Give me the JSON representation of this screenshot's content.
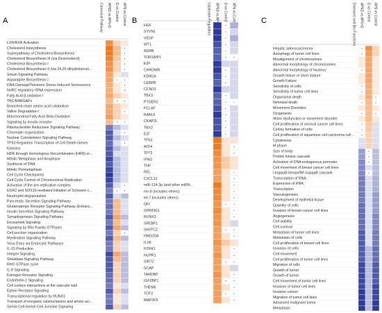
{
  "chart_data": [
    {
      "type": "heatmap",
      "panel": "A",
      "row_title": "Canonical Pathway",
      "columns": [
        "AP6D vs AP6+D",
        "D vs Control",
        "AP6 vs Control"
      ],
      "colors": {
        "positive": "#f07a1c",
        "negative": "#2d3c9c"
      },
      "rows": [
        "LXR/RXR Activation",
        "Cholesterol biosynthesis",
        "Superpathway of Cholesterol Biosynthesis",
        "Cholesterol Biosynthesis III (via Desmosterol)",
        "Cholesterol Biosynthesis I",
        "Cholesterol Biosynthesis II (via 24,25-dihydrolanost...",
        "Sirtuin Signaling Pathway",
        "Asparagine Biosynthesis I",
        "DNA Damage/Telomere Stress Induced Senescence",
        "NoRC regulatory rRNA expression",
        "Fatty Acid β-oxidation I",
        "TBC/RABGAPs",
        "Branched-chain amino acid catabolism",
        "Valine Degradation I",
        "Mitochondrial Fatty Acid Beta-Oxidation",
        "Signaling by Insulin receptor",
        "Ribonucleotide Reductase Signaling Pathway",
        "Chromatin organization",
        "Nuclear Cytoskeleton Signaling Pathway",
        "TP53 Regulates Transcription of Cell Death Genes",
        "Kinesins",
        "HDR through Homologous Recombination (HRR) or...",
        "Mitotic Metaphase and Anaphase",
        "Synthesis of DNA",
        "Mitotic Prometaphase",
        "Cell Cycle Checkpoints",
        "Cell Cycle Control of Chromosomal Replication",
        "Activation of the pre-replicative complex",
        "EGR2 and SOX10-mediated initiation of Schwann c...",
        "Neutrophil degranulation",
        "Pancreatic Secretion Signaling Pathway",
        "Glutamatergic Receptor Signaling Pathway (Enhanc...",
        "Insulin Secretion Signaling Pathway",
        "Synaptogenesis Signaling Pathway",
        "Eicosanoid Signaling",
        "Signaling by Rho Family GTPases",
        "Cell junction organization",
        "Myelination Signaling Pathway",
        "Virus Entry via Endocytic Pathways",
        "IL-15 Production",
        "Integrin Signaling",
        "Sheddase Signaling Pathway",
        "RHO GTPase cycle",
        "IL-8 Signaling",
        "Estrogen Receptor Signaling",
        "Endothelin-1 Signaling",
        "Cell surface interactions at the vascular wall",
        "Ephrin Receptor Signaling",
        "Transcriptional regulation by RUNX1",
        "Transport of inorganic cations/anions and amino aci...",
        "Sertoli Cell-Sertoli Cell Junction Signaling"
      ],
      "values": [
        [
          2.5,
          1,
          0.5
        ],
        [
          3,
          1.5,
          null
        ],
        [
          3,
          1.5,
          null
        ],
        [
          2.8,
          1.2,
          null
        ],
        [
          2.5,
          1,
          null
        ],
        [
          2.5,
          1,
          null
        ],
        [
          2,
          0.5,
          -0.5
        ],
        [
          2,
          null,
          null
        ],
        [
          1.8,
          0.5,
          null
        ],
        [
          1.8,
          0.5,
          null
        ],
        [
          2,
          1,
          0.5
        ],
        [
          1.5,
          null,
          null
        ],
        [
          2,
          1,
          0.5
        ],
        [
          2,
          1,
          null
        ],
        [
          2.2,
          1,
          0.5
        ],
        [
          1.5,
          null,
          null
        ],
        [
          -2,
          -1,
          -0.5
        ],
        [
          -2.5,
          -0.5,
          null
        ],
        [
          -2.5,
          -1,
          -0.5
        ],
        [
          -2.2,
          -0.5,
          null
        ],
        [
          -2.5,
          -1,
          -0.5
        ],
        [
          -2.5,
          -0.5,
          -0.5
        ],
        [
          -2.8,
          -1,
          -0.5
        ],
        [
          -2.5,
          -1,
          -0.5
        ],
        [
          -2.8,
          -1,
          -0.5
        ],
        [
          -3,
          -1,
          -0.5
        ],
        [
          -2.8,
          -1,
          -0.5
        ],
        [
          -2.5,
          -0.5,
          null
        ],
        [
          -2,
          null,
          null
        ],
        [
          -2.5,
          -0.5,
          -1
        ],
        [
          -2,
          1.5,
          -0.5
        ],
        [
          -2.2,
          1.5,
          -0.5
        ],
        [
          -2,
          1.5,
          -0.5
        ],
        [
          -2.5,
          2,
          -1
        ],
        [
          -2,
          1.5,
          -0.5
        ],
        [
          -2.5,
          2,
          -1
        ],
        [
          -2,
          1,
          null
        ],
        [
          -2.5,
          1.5,
          -1
        ],
        [
          -2,
          1,
          -0.5
        ],
        [
          -2,
          1,
          -0.5
        ],
        [
          -2.8,
          2,
          -1
        ],
        [
          -2.5,
          1.5,
          -1
        ],
        [
          -2.5,
          1,
          -1
        ],
        [
          -2.5,
          1,
          -1
        ],
        [
          -2.2,
          1,
          -1
        ],
        [
          -2.2,
          1,
          -1
        ],
        [
          -2,
          0.5,
          -0.5
        ],
        [
          -2.5,
          1,
          -1
        ],
        [
          -2,
          0.5,
          -0.5
        ],
        [
          -2,
          0.5,
          -0.5
        ],
        [
          -2.5,
          1,
          -1
        ]
      ]
    },
    {
      "type": "heatmap",
      "panel": "B",
      "row_title": "Upstream Regulators",
      "columns": [
        "AP6D vs AP6+D",
        "D vs Control",
        "AP6 vs Control"
      ],
      "colors": {
        "positive": "#f07a1c",
        "negative": "#2d3c9c"
      },
      "rows": [
        "HGF",
        "SYVN1",
        "VEGF",
        "WT1",
        "ADRB",
        "TOR1AIP1",
        "E2F",
        "CHROMR",
        "KDM1A",
        "CEBPB",
        "CCND1",
        "TBX3",
        "PTGER2",
        "PCLAF",
        "RABL6",
        "CKAP2L",
        "TBX2",
        "E2f",
        "TP53",
        "ATF4",
        "TP73",
        "IFNG",
        "TNF",
        "REL",
        "CXCL12",
        "miR-124-3p (and other miRN...",
        "mir-8 (includes others)",
        "let-7 (includes others)",
        "QKI",
        "SPRING1",
        "RUNX3",
        "SREBF1",
        "SH3TC2",
        "HMG20A",
        "IL1B",
        "NTRK1",
        "NUPR1",
        "SIRT2",
        "SCAP",
        "TARDBP",
        "IGF2BP1",
        "THEM6",
        "TCF3",
        "MAP2K5"
      ],
      "values": [
        [
          -2.5,
          null,
          -1
        ],
        [
          -2.5,
          null,
          -0.5
        ],
        [
          -2.5,
          null,
          -1
        ],
        [
          -2.2,
          null,
          -0.5
        ],
        [
          -2,
          null,
          -0.5
        ],
        [
          -2,
          null,
          null
        ],
        [
          -2.5,
          -0.5,
          -0.5
        ],
        [
          -2.5,
          null,
          -0.5
        ],
        [
          -2.2,
          null,
          -0.5
        ],
        [
          -2,
          null,
          -0.5
        ],
        [
          -2.5,
          -0.5,
          -0.5
        ],
        [
          -2,
          null,
          -0.5
        ],
        [
          -2,
          null,
          null
        ],
        [
          -2.2,
          null,
          -0.5
        ],
        [
          -2.5,
          null,
          -0.5
        ],
        [
          -2.2,
          null,
          -0.5
        ],
        [
          -2.2,
          null,
          -0.5
        ],
        [
          -2.5,
          null,
          -0.5
        ],
        [
          2.5,
          0.5,
          0.5
        ],
        [
          2.5,
          0.5,
          null
        ],
        [
          2.2,
          0.5,
          null
        ],
        [
          2,
          1,
          0.5
        ],
        [
          2,
          1,
          0.5
        ],
        [
          1.8,
          0.5,
          null
        ],
        [
          1.8,
          0.5,
          null
        ],
        [
          2.5,
          0.5,
          null
        ],
        [
          2.2,
          0.5,
          null
        ],
        [
          2.2,
          0.5,
          null
        ],
        [
          2,
          null,
          null
        ],
        [
          2.2,
          0.5,
          null
        ],
        [
          2,
          0.5,
          null
        ],
        [
          2,
          0.5,
          -0.5
        ],
        [
          1.8,
          null,
          null
        ],
        [
          1.8,
          0.5,
          null
        ],
        [
          2,
          1,
          0.5
        ],
        [
          1.8,
          0.5,
          null
        ],
        [
          2,
          0.5,
          null
        ],
        [
          1.8,
          null,
          null
        ],
        [
          1.8,
          0.5,
          -0.5
        ],
        [
          2,
          0.5,
          null
        ],
        [
          1.8,
          null,
          null
        ],
        [
          1.8,
          0.5,
          null
        ],
        [
          1.8,
          null,
          null
        ],
        [
          1.8,
          0.5,
          null
        ]
      ]
    },
    {
      "type": "heatmap",
      "panel": "C",
      "row_title": "Diseases and Bio Functions",
      "columns": [
        "AP6D vs AP6+D",
        "D vs Control",
        "AP6 vs Control"
      ],
      "colors": {
        "positive": "#f07a1c",
        "negative": "#2d3c9c"
      },
      "rows": [
        "Hepatic adenocarcinoma",
        "Autophagy of tumor cell lines",
        "Misalignment of chromosomes",
        "Abnormal morphology of chromosomes",
        "Abnormal morphology of Nucleus",
        "Growth failure or short stature",
        "Growth Failure",
        "Sensitivity of cells",
        "Sensitivity of tumor cell lines",
        "Organismal death",
        "Neonatal death",
        "Movement Disorders",
        "Dysgenesis",
        "Motor dysfunction or movement disorder",
        "Cell proliferation of cervical cancer cell lines",
        "Colony formation of cells",
        "Cell proliferation of squamous cell carcinoma cell...",
        "Cytokinesis",
        "M phase",
        "Size of body",
        "Protein kinase cascade",
        "Activation of DNA endogenous promoter",
        "Cell movement of breast cancer cell lines",
        "I-kappaB kinase/NF-kappaB cascade",
        "Transcription of RNA",
        "Expression of RNA",
        "Transcription",
        "Vasculogenesis",
        "Development of epithelial tissue",
        "Quantity of cells",
        "Invasion of breast cancer cell lines",
        "Angiogenesis",
        "Cell viability",
        "Cell survival",
        "Metastasis of tumor cell lines",
        "Metastasis of cells",
        "Cell proliferation of breast cell lines",
        "Invasion of cells",
        "Cell movement",
        "Cell proliferation of tumor cell lines",
        "Migration of cells",
        "Growth of tumor",
        "Growth of tumor",
        "Cell movement of tumor cell lines",
        "Invasion of tumor cell lines",
        "Invasive cancer",
        "Migration of tumor cell lines",
        "Advanced malignant tumor",
        "Metastasis"
      ],
      "values": [
        [
          null,
          2.5,
          1
        ],
        [
          null,
          2.2,
          1
        ],
        [
          0.5,
          2,
          0.5
        ],
        [
          0.5,
          2,
          0.5
        ],
        [
          null,
          2,
          0.5
        ],
        [
          0.5,
          2,
          0.5
        ],
        [
          0.5,
          2,
          0.5
        ],
        [
          null,
          1.8,
          0.5
        ],
        [
          null,
          1.8,
          0.5
        ],
        [
          0.5,
          1.8,
          null
        ],
        [
          null,
          1.5,
          null
        ],
        [
          0.5,
          1.5,
          0.5
        ],
        [
          null,
          1.5,
          null
        ],
        [
          0.5,
          1.5,
          0.5
        ],
        [
          null,
          1.2,
          -0.5
        ],
        [
          null,
          1.2,
          -0.5
        ],
        [
          null,
          1,
          -0.5
        ],
        [
          -0.5,
          1,
          -0.5
        ],
        [
          -0.5,
          1,
          -0.5
        ],
        [
          -1.5,
          null,
          -1
        ],
        [
          -1.5,
          null,
          -1
        ],
        [
          -1.8,
          null,
          -1
        ],
        [
          -1.8,
          -0.5,
          -1
        ],
        [
          -1.8,
          null,
          -1
        ],
        [
          -2,
          -0.5,
          -1.2
        ],
        [
          -2,
          -0.5,
          -1.2
        ],
        [
          -2,
          -0.5,
          -1.2
        ],
        [
          -2,
          -0.5,
          -1.5
        ],
        [
          -2,
          -0.5,
          -1.5
        ],
        [
          -2.2,
          -0.5,
          -1.5
        ],
        [
          -2.2,
          -0.5,
          -1.5
        ],
        [
          -2.2,
          -0.5,
          -1.8
        ],
        [
          -2.2,
          -0.5,
          -1.8
        ],
        [
          -2.2,
          -0.5,
          -1.8
        ],
        [
          -2.5,
          -0.5,
          -2
        ],
        [
          -2.5,
          -0.5,
          -2
        ],
        [
          -2.5,
          -0.5,
          -2
        ],
        [
          -2.5,
          -1,
          -2.2
        ],
        [
          -2.5,
          -1,
          -2.2
        ],
        [
          -2.5,
          -1,
          -2.2
        ],
        [
          -2.8,
          -1,
          -2.5
        ],
        [
          -2.8,
          -1,
          -2.5
        ],
        [
          -2.8,
          -1,
          -2.5
        ],
        [
          -2.8,
          -1,
          -2.5
        ],
        [
          -2.8,
          -1,
          -2.8
        ],
        [
          -3,
          -1,
          -2.8
        ],
        [
          -3,
          -1,
          -2.8
        ],
        [
          -3,
          -1,
          -3
        ],
        [
          -3,
          -1,
          -3
        ]
      ]
    }
  ]
}
